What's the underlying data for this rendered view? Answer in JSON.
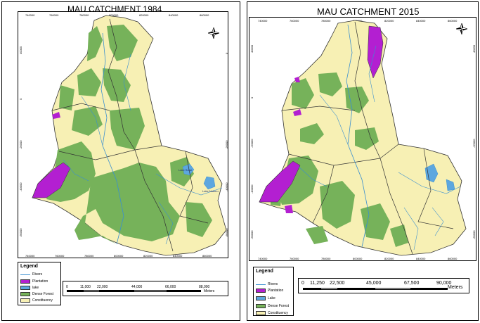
{
  "left_map": {
    "title": "MAU CATCHMENT 1984",
    "x_ticks": [
      "740000",
      "760000",
      "780000",
      "800000",
      "820000",
      "840000",
      "860000"
    ],
    "y_ticks": [
      "40000",
      "0",
      "-20000",
      "-40000",
      "-60000"
    ],
    "place_labels": [
      "Lake Solai",
      "Lake Nakuru"
    ],
    "legend": {
      "title": "Legend",
      "items": [
        "Rivers",
        "Plantation",
        "lake",
        "Dense Forest",
        "Constituency"
      ]
    },
    "scale": {
      "labels": [
        "0",
        "11,000",
        "22,000",
        "44,000",
        "66,000",
        "88,000"
      ],
      "unit": "Meters"
    }
  },
  "right_map": {
    "title": "MAU CATCHMENT 2015",
    "x_ticks": [
      "740000",
      "760000",
      "780000",
      "800000",
      "820000",
      "840000",
      "860000"
    ],
    "y_ticks": [
      "40000",
      "0",
      "-20000",
      "-40000",
      "-60000"
    ],
    "legend": {
      "title": "Legend",
      "items": [
        "Rivers",
        "Plantation",
        "Lake",
        "Dense Forest",
        "Constituency"
      ]
    },
    "scale": {
      "labels": [
        "0",
        "11,250",
        "22,500",
        "45,000",
        "67,500",
        "90,000"
      ],
      "unit": "Meters"
    }
  },
  "colors": {
    "constituency": "#f7f0b4",
    "forest": "#76b25a",
    "plantation": "#b31fd1",
    "lake": "#5da7df",
    "river": "#3a8fd0",
    "boundary": "#333333"
  },
  "icons": [
    "north-arrow-icon"
  ]
}
